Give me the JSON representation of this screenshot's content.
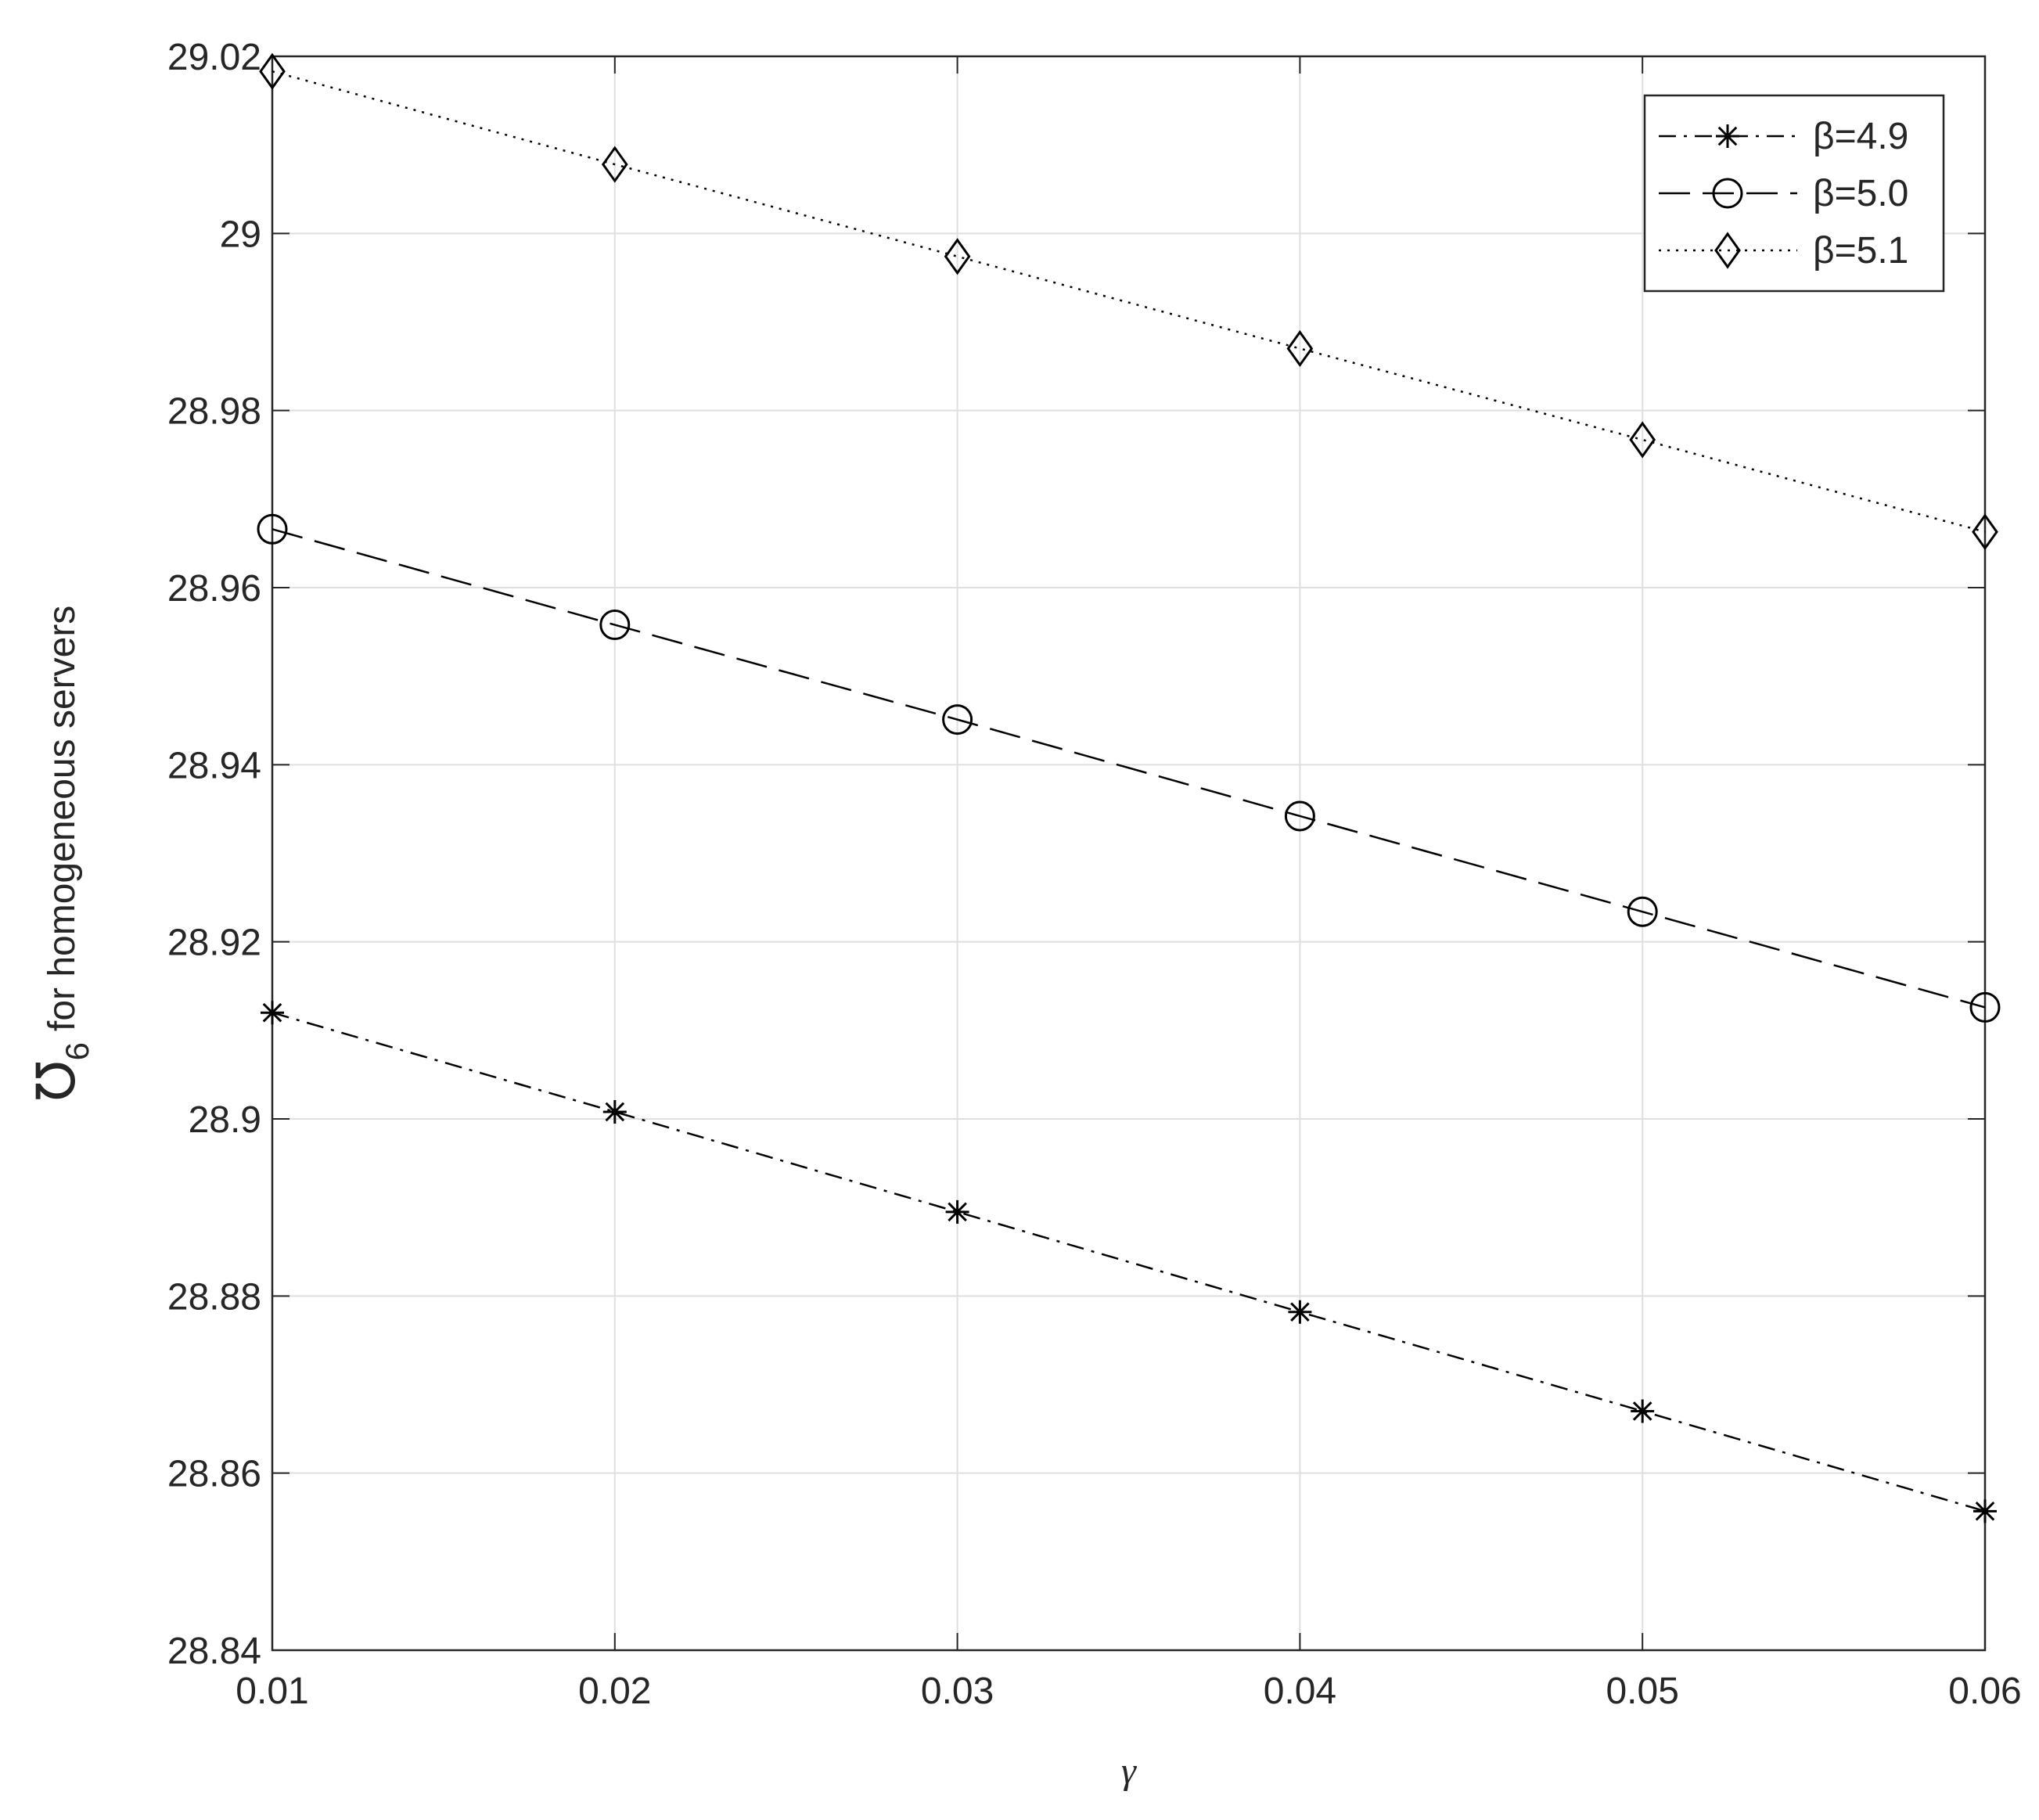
{
  "chart_data": {
    "type": "line",
    "xlabel": "γ",
    "ylabel": {
      "symbol": "℧",
      "subscript": "6",
      "text": "for homogeneous servers"
    },
    "x": [
      0.01,
      0.02,
      0.03,
      0.04,
      0.05,
      0.06
    ],
    "series": [
      {
        "name": "β=4.9",
        "color": "#000000",
        "linestyle": "dashdot",
        "marker": "asterisk",
        "values": [
          28.912,
          28.9008,
          28.8895,
          28.8782,
          28.867,
          28.8557
        ]
      },
      {
        "name": "β=5.0",
        "color": "#000000",
        "linestyle": "dashed",
        "marker": "circle",
        "values": [
          28.9666,
          28.9558,
          28.9451,
          28.9342,
          28.9234,
          28.9126
        ]
      },
      {
        "name": "β=5.1",
        "color": "#000000",
        "linestyle": "dotted",
        "marker": "diamond",
        "values": [
          29.0183,
          29.0078,
          28.9974,
          28.987,
          28.9767,
          28.9663
        ]
      }
    ],
    "xlim": [
      0.01,
      0.06
    ],
    "xticks": [
      0.01,
      0.02,
      0.03,
      0.04,
      0.05,
      0.06
    ],
    "ylim": [
      28.84,
      29.02
    ],
    "yticks": [
      28.84,
      28.86,
      28.88,
      28.9,
      28.92,
      28.94,
      28.96,
      28.98,
      29,
      29.02
    ],
    "grid": true,
    "legend": "top-right"
  }
}
